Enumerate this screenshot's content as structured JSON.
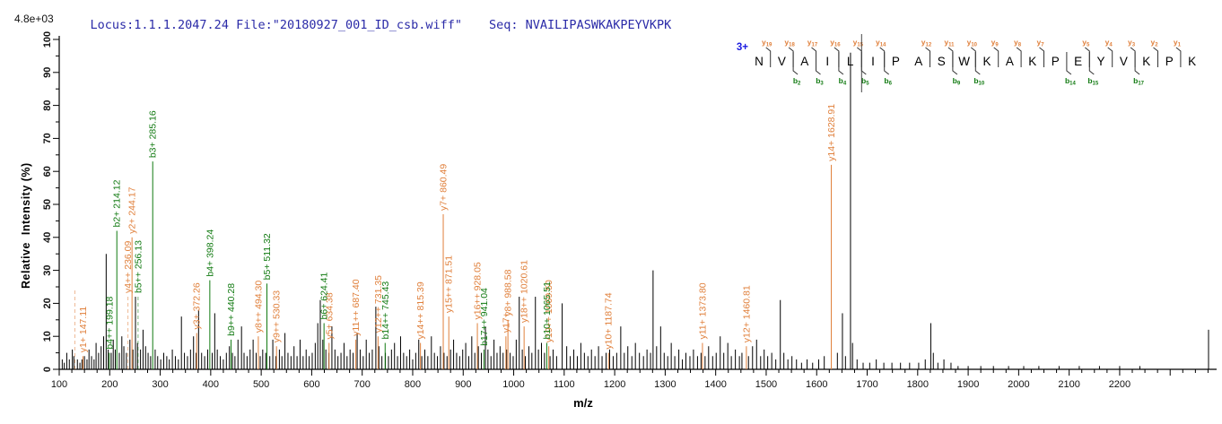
{
  "header": {
    "title": "Locus:1.1.1.2047.24 File:\"20180927_001_ID_csb.wiff\"",
    "seq_label": "Seq: NVAILIPASWKAKPEYVKPK",
    "max_intensity": "4.8e+03"
  },
  "colors": {
    "y_ion": "#e0803c",
    "b_ion": "#117a11",
    "peak": "#000000",
    "title_blue": "#2b2ba8",
    "charge_blue": "#1a1ae0",
    "axis": "#000000"
  },
  "axes": {
    "x": {
      "label": "m/z",
      "min": 100,
      "max": 2392,
      "tick_major": 100,
      "tick_minor": 25,
      "label_min": 100,
      "label_max": 2200
    },
    "y": {
      "label": "Relative  Intensity (%)",
      "min": 0,
      "max": 100,
      "tick_major": 10,
      "tick_minor": 5
    }
  },
  "sequence_annotation": {
    "charge_label": "3+",
    "residues": [
      "N",
      "V",
      "A",
      "I",
      "L",
      "I",
      "P",
      "A",
      "S",
      "W",
      "K",
      "A",
      "K",
      "P",
      "E",
      "Y",
      "V",
      "K",
      "P",
      "K"
    ],
    "y_ions": [
      {
        "boundary": 0,
        "ion": "y",
        "num": "19"
      },
      {
        "boundary": 1,
        "ion": "y",
        "num": "18"
      },
      {
        "boundary": 2,
        "ion": "y",
        "num": "17"
      },
      {
        "boundary": 3,
        "ion": "y",
        "num": "16"
      },
      {
        "boundary": 4,
        "ion": "y",
        "num": "15"
      },
      {
        "boundary": 5,
        "ion": "y",
        "num": "14"
      },
      {
        "boundary": 7,
        "ion": "y",
        "num": "12"
      },
      {
        "boundary": 8,
        "ion": "y",
        "num": "11"
      },
      {
        "boundary": 9,
        "ion": "y",
        "num": "10"
      },
      {
        "boundary": 10,
        "ion": "y",
        "num": "9"
      },
      {
        "boundary": 11,
        "ion": "y",
        "num": "8"
      },
      {
        "boundary": 12,
        "ion": "y",
        "num": "7"
      },
      {
        "boundary": 14,
        "ion": "y",
        "num": "5"
      },
      {
        "boundary": 15,
        "ion": "y",
        "num": "4"
      },
      {
        "boundary": 16,
        "ion": "y",
        "num": "3"
      },
      {
        "boundary": 17,
        "ion": "y",
        "num": "2"
      },
      {
        "boundary": 18,
        "ion": "y",
        "num": "1"
      }
    ],
    "b_ions": [
      {
        "boundary": 1,
        "ion": "b",
        "num": "2"
      },
      {
        "boundary": 2,
        "ion": "b",
        "num": "3"
      },
      {
        "boundary": 3,
        "ion": "b",
        "num": "4"
      },
      {
        "boundary": 4,
        "ion": "b",
        "num": "5"
      },
      {
        "boundary": 5,
        "ion": "b",
        "num": "6"
      },
      {
        "boundary": 8,
        "ion": "b",
        "num": "9"
      },
      {
        "boundary": 9,
        "ion": "b",
        "num": "10"
      },
      {
        "boundary": 13,
        "ion": "b",
        "num": "14"
      },
      {
        "boundary": 14,
        "ion": "b",
        "num": "15"
      },
      {
        "boundary": 16,
        "ion": "b",
        "num": "17"
      }
    ],
    "marker_boundary": 4
  },
  "chart_data": {
    "type": "bar",
    "subtype": "ms2_fragment_spectrum",
    "title": "MS/MS spectrum of NVAILIPASWKAKPEYVKPK (3+)",
    "xlabel": "m/z",
    "ylabel": "Relative  Intensity (%)",
    "xlim": [
      100,
      2392
    ],
    "ylim": [
      0,
      100
    ],
    "grid": false,
    "annotated_peaks": {
      "y_ions": [
        {
          "label": "y1+",
          "mz_text": "147.11",
          "mz": 147.11,
          "intensity": 4,
          "dash": false
        },
        {
          "label": "y4++",
          "mz_text": "236.09",
          "mz": 236.09,
          "intensity": 22,
          "dash": true
        },
        {
          "label": "y2+",
          "mz_text": "244.17",
          "mz": 244.17,
          "intensity": 40,
          "dash": false
        },
        {
          "label": "y3+",
          "mz_text": "372.26",
          "mz": 372.26,
          "intensity": 11,
          "dash": false
        },
        {
          "label": "y8++",
          "mz_text": "494.30",
          "mz": 494.3,
          "intensity": 10,
          "dash": false
        },
        {
          "label": "y9++",
          "mz_text": "530.33",
          "mz": 530.33,
          "intensity": 7,
          "dash": false
        },
        {
          "label": "y5+",
          "mz_text": "634.38",
          "mz": 634.38,
          "intensity": 8,
          "dash": false
        },
        {
          "label": "y11++",
          "mz_text": "687.40",
          "mz": 687.4,
          "intensity": 9,
          "dash": false
        },
        {
          "label": "y12++",
          "mz_text": "731.35",
          "mz": 731.35,
          "intensity": 10,
          "dash": false
        },
        {
          "label": "y14++",
          "mz_text": "815.39",
          "mz": 815.39,
          "intensity": 8,
          "dash": false
        },
        {
          "label": "y7+",
          "mz_text": "860.49",
          "mz": 860.49,
          "intensity": 47,
          "dash": false
        },
        {
          "label": "y15++",
          "mz_text": "871.51",
          "mz": 871.51,
          "intensity": 16,
          "dash": false
        },
        {
          "label": "y16++",
          "mz_text": "928.05",
          "mz": 928.05,
          "intensity": 14,
          "dash": false
        },
        {
          "label": "y17+",
          "mz_text": "",
          "mz": 984.59,
          "intensity": 10,
          "dash": false
        },
        {
          "label": "y8+",
          "mz_text": "988.58",
          "mz": 988.58,
          "intensity": 15,
          "dash": false
        },
        {
          "label": "y18++",
          "mz_text": "1020.61",
          "mz": 1020.61,
          "intensity": 13,
          "dash": false
        },
        {
          "label": "y19++",
          "mz_text": "1069.50",
          "mz": 1069.5,
          "intensity": 7,
          "dash": false
        },
        {
          "label": "y10+",
          "mz_text": "1187.74",
          "mz": 1187.74,
          "intensity": 5,
          "dash": false
        },
        {
          "label": "y11+",
          "mz_text": "1373.80",
          "mz": 1373.8,
          "intensity": 8,
          "dash": false
        },
        {
          "label": "y12+",
          "mz_text": "1460.81",
          "mz": 1460.81,
          "intensity": 7,
          "dash": false
        },
        {
          "label": "y14+",
          "mz_text": "1628.91",
          "mz": 1628.91,
          "intensity": 62,
          "dash": false
        }
      ],
      "b_ions": [
        {
          "label": "b4++",
          "mz_text": "199.18",
          "mz": 199.18,
          "intensity": 5,
          "dash": false
        },
        {
          "label": "b2+",
          "mz_text": "214.12",
          "mz": 214.12,
          "intensity": 42,
          "dash": false
        },
        {
          "label": "b5++",
          "mz_text": "256.13",
          "mz": 256.13,
          "intensity": 22,
          "dash": true
        },
        {
          "label": "b3+",
          "mz_text": "285.16",
          "mz": 285.16,
          "intensity": 63,
          "dash": false
        },
        {
          "label": "b4+",
          "mz_text": "398.24",
          "mz": 398.24,
          "intensity": 27,
          "dash": false
        },
        {
          "label": "b9++",
          "mz_text": "440.28",
          "mz": 440.28,
          "intensity": 9,
          "dash": false
        },
        {
          "label": "b5+",
          "mz_text": "511.32",
          "mz": 511.32,
          "intensity": 26,
          "dash": false
        },
        {
          "label": "b6+",
          "mz_text": "624.41",
          "mz": 624.41,
          "intensity": 14,
          "dash": false
        },
        {
          "label": "b14++",
          "mz_text": "745.43",
          "mz": 745.43,
          "intensity": 8,
          "dash": false
        },
        {
          "label": "b17++",
          "mz_text": "941.04",
          "mz": 941.04,
          "intensity": 6,
          "dash": false
        },
        {
          "label": "b10+",
          "mz_text": "1065.51",
          "mz": 1065.51,
          "intensity": 8,
          "dash": false
        }
      ],
      "unmatched_dashed": [
        {
          "mz": 131.0,
          "intensity": 24,
          "color": "y"
        }
      ]
    },
    "background_peaks": [
      [
        106,
        3
      ],
      [
        110,
        2
      ],
      [
        115,
        5
      ],
      [
        120,
        3
      ],
      [
        126,
        6
      ],
      [
        129,
        4
      ],
      [
        136,
        3
      ],
      [
        141,
        2
      ],
      [
        145,
        3
      ],
      [
        150,
        4
      ],
      [
        155,
        3
      ],
      [
        159,
        6
      ],
      [
        164,
        4
      ],
      [
        169,
        3
      ],
      [
        173,
        8
      ],
      [
        178,
        5
      ],
      [
        183,
        7
      ],
      [
        188,
        10
      ],
      [
        193,
        35
      ],
      [
        197,
        6
      ],
      [
        203,
        5
      ],
      [
        207,
        9
      ],
      [
        211,
        6
      ],
      [
        219,
        5
      ],
      [
        224,
        10
      ],
      [
        228,
        7
      ],
      [
        233,
        5
      ],
      [
        240,
        9
      ],
      [
        246,
        6
      ],
      [
        251,
        22
      ],
      [
        255,
        8
      ],
      [
        261,
        6
      ],
      [
        266,
        12
      ],
      [
        271,
        7
      ],
      [
        276,
        5
      ],
      [
        281,
        4
      ],
      [
        290,
        6
      ],
      [
        295,
        4
      ],
      [
        301,
        3
      ],
      [
        307,
        5
      ],
      [
        313,
        4
      ],
      [
        318,
        3
      ],
      [
        324,
        6
      ],
      [
        330,
        4
      ],
      [
        336,
        3
      ],
      [
        342,
        16
      ],
      [
        348,
        5
      ],
      [
        354,
        4
      ],
      [
        360,
        6
      ],
      [
        366,
        10
      ],
      [
        371,
        5
      ],
      [
        376,
        18
      ],
      [
        382,
        5
      ],
      [
        388,
        4
      ],
      [
        394,
        6
      ],
      [
        403,
        5
      ],
      [
        408,
        17
      ],
      [
        413,
        6
      ],
      [
        419,
        4
      ],
      [
        425,
        3
      ],
      [
        431,
        5
      ],
      [
        437,
        7
      ],
      [
        443,
        5
      ],
      [
        448,
        4
      ],
      [
        454,
        9
      ],
      [
        461,
        13
      ],
      [
        466,
        5
      ],
      [
        472,
        4
      ],
      [
        478,
        6
      ],
      [
        484,
        9
      ],
      [
        490,
        5
      ],
      [
        498,
        4
      ],
      [
        503,
        6
      ],
      [
        509,
        5
      ],
      [
        517,
        4
      ],
      [
        523,
        9
      ],
      [
        529,
        4
      ],
      [
        536,
        6
      ],
      [
        541,
        4
      ],
      [
        547,
        11
      ],
      [
        553,
        5
      ],
      [
        559,
        4
      ],
      [
        565,
        7
      ],
      [
        571,
        4
      ],
      [
        577,
        9
      ],
      [
        583,
        4
      ],
      [
        589,
        6
      ],
      [
        595,
        4
      ],
      [
        601,
        5
      ],
      [
        607,
        8
      ],
      [
        612,
        14
      ],
      [
        617,
        21
      ],
      [
        622,
        9
      ],
      [
        628,
        6
      ],
      [
        634,
        5
      ],
      [
        640,
        13
      ],
      [
        646,
        6
      ],
      [
        652,
        4
      ],
      [
        658,
        5
      ],
      [
        664,
        8
      ],
      [
        670,
        4
      ],
      [
        676,
        6
      ],
      [
        682,
        5
      ],
      [
        690,
        11
      ],
      [
        696,
        6
      ],
      [
        702,
        4
      ],
      [
        708,
        9
      ],
      [
        714,
        5
      ],
      [
        720,
        6
      ],
      [
        727,
        19
      ],
      [
        733,
        7
      ],
      [
        739,
        4
      ],
      [
        746,
        5
      ],
      [
        752,
        4
      ],
      [
        758,
        6
      ],
      [
        764,
        8
      ],
      [
        770,
        4
      ],
      [
        776,
        10
      ],
      [
        782,
        5
      ],
      [
        788,
        4
      ],
      [
        794,
        6
      ],
      [
        800,
        3
      ],
      [
        806,
        5
      ],
      [
        812,
        9
      ],
      [
        818,
        4
      ],
      [
        824,
        6
      ],
      [
        830,
        4
      ],
      [
        837,
        10
      ],
      [
        843,
        5
      ],
      [
        849,
        4
      ],
      [
        855,
        7
      ],
      [
        862,
        5
      ],
      [
        868,
        4
      ],
      [
        875,
        6
      ],
      [
        881,
        9
      ],
      [
        887,
        5
      ],
      [
        893,
        4
      ],
      [
        899,
        6
      ],
      [
        905,
        8
      ],
      [
        911,
        4
      ],
      [
        917,
        10
      ],
      [
        923,
        5
      ],
      [
        930,
        7
      ],
      [
        936,
        5
      ],
      [
        944,
        13
      ],
      [
        949,
        6
      ],
      [
        955,
        4
      ],
      [
        961,
        9
      ],
      [
        967,
        5
      ],
      [
        973,
        7
      ],
      [
        979,
        5
      ],
      [
        986,
        6
      ],
      [
        993,
        5
      ],
      [
        999,
        4
      ],
      [
        1005,
        9
      ],
      [
        1011,
        22
      ],
      [
        1017,
        6
      ],
      [
        1023,
        4
      ],
      [
        1030,
        7
      ],
      [
        1036,
        5
      ],
      [
        1043,
        22
      ],
      [
        1049,
        6
      ],
      [
        1055,
        8
      ],
      [
        1061,
        5
      ],
      [
        1072,
        4
      ],
      [
        1078,
        6
      ],
      [
        1085,
        4
      ],
      [
        1096,
        20
      ],
      [
        1105,
        7
      ],
      [
        1112,
        4
      ],
      [
        1119,
        6
      ],
      [
        1126,
        4
      ],
      [
        1133,
        8
      ],
      [
        1140,
        5
      ],
      [
        1147,
        4
      ],
      [
        1154,
        6
      ],
      [
        1161,
        4
      ],
      [
        1168,
        7
      ],
      [
        1175,
        4
      ],
      [
        1183,
        5
      ],
      [
        1190,
        6
      ],
      [
        1197,
        4
      ],
      [
        1204,
        5
      ],
      [
        1212,
        13
      ],
      [
        1219,
        5
      ],
      [
        1226,
        7
      ],
      [
        1234,
        4
      ],
      [
        1241,
        8
      ],
      [
        1249,
        5
      ],
      [
        1257,
        4
      ],
      [
        1264,
        6
      ],
      [
        1271,
        5
      ],
      [
        1276,
        30
      ],
      [
        1283,
        7
      ],
      [
        1291,
        13
      ],
      [
        1298,
        5
      ],
      [
        1305,
        4
      ],
      [
        1312,
        8
      ],
      [
        1319,
        4
      ],
      [
        1327,
        6
      ],
      [
        1334,
        3
      ],
      [
        1341,
        5
      ],
      [
        1349,
        4
      ],
      [
        1356,
        6
      ],
      [
        1364,
        4
      ],
      [
        1371,
        5
      ],
      [
        1379,
        4
      ],
      [
        1386,
        7
      ],
      [
        1394,
        4
      ],
      [
        1401,
        5
      ],
      [
        1409,
        10
      ],
      [
        1416,
        5
      ],
      [
        1424,
        8
      ],
      [
        1431,
        4
      ],
      [
        1439,
        6
      ],
      [
        1447,
        4
      ],
      [
        1452,
        5
      ],
      [
        1465,
        4
      ],
      [
        1473,
        7
      ],
      [
        1481,
        9
      ],
      [
        1489,
        4
      ],
      [
        1496,
        6
      ],
      [
        1503,
        4
      ],
      [
        1511,
        5
      ],
      [
        1519,
        3
      ],
      [
        1528,
        21
      ],
      [
        1535,
        5
      ],
      [
        1543,
        3
      ],
      [
        1551,
        4
      ],
      [
        1560,
        3
      ],
      [
        1570,
        2
      ],
      [
        1581,
        3
      ],
      [
        1592,
        2
      ],
      [
        1604,
        3
      ],
      [
        1615,
        4
      ],
      [
        1641,
        5
      ],
      [
        1651,
        17
      ],
      [
        1657,
        4
      ],
      [
        1667,
        96
      ],
      [
        1671,
        8
      ],
      [
        1680,
        3
      ],
      [
        1692,
        2
      ],
      [
        1705,
        2
      ],
      [
        1718,
        3
      ],
      [
        1733,
        2
      ],
      [
        1749,
        2
      ],
      [
        1766,
        2
      ],
      [
        1784,
        2
      ],
      [
        1802,
        2
      ],
      [
        1815,
        3
      ],
      [
        1826,
        14
      ],
      [
        1831,
        5
      ],
      [
        1840,
        2
      ],
      [
        1852,
        3
      ],
      [
        1866,
        2
      ],
      [
        1880,
        1
      ],
      [
        1900,
        1
      ],
      [
        1925,
        1
      ],
      [
        1950,
        1
      ],
      [
        1980,
        1
      ],
      [
        2010,
        1
      ],
      [
        2040,
        1
      ],
      [
        2080,
        1
      ],
      [
        2120,
        1
      ],
      [
        2160,
        1
      ],
      [
        2200,
        1
      ],
      [
        2240,
        1
      ],
      [
        2376,
        12
      ]
    ]
  }
}
